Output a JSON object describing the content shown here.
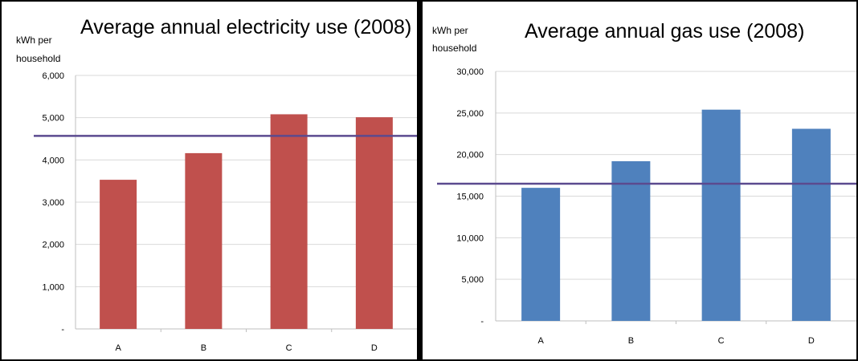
{
  "chart_data": [
    {
      "type": "bar",
      "title": "Average annual electricity use (2008)",
      "ylabel_line1": "kWh per",
      "ylabel_line2": "household",
      "categories": [
        "A",
        "B",
        "C",
        "D"
      ],
      "values": [
        3530,
        4160,
        5080,
        5010
      ],
      "reference_line": 4570,
      "ylim": [
        0,
        6000
      ],
      "yticks": [
        0,
        1000,
        2000,
        3000,
        4000,
        5000,
        6000
      ],
      "ytick_labels": [
        "-",
        "1,000",
        "2,000",
        "3,000",
        "4,000",
        "5,000",
        "6,000"
      ],
      "bar_color": "#C0504D",
      "line_color": "#5B4A8F",
      "grid": true
    },
    {
      "type": "bar",
      "title": "Average annual gas use (2008)",
      "ylabel_line1": "kWh per",
      "ylabel_line2": "household",
      "categories": [
        "A",
        "B",
        "C",
        "D"
      ],
      "values": [
        16000,
        19200,
        25400,
        23100
      ],
      "reference_line": 16500,
      "ylim": [
        0,
        30000
      ],
      "yticks": [
        0,
        5000,
        10000,
        15000,
        20000,
        25000,
        30000
      ],
      "ytick_labels": [
        "-",
        "5,000",
        "10,000",
        "15,000",
        "20,000",
        "25,000",
        "30,000"
      ],
      "bar_color": "#4F81BD",
      "line_color": "#5B4A8F",
      "grid": true
    }
  ]
}
